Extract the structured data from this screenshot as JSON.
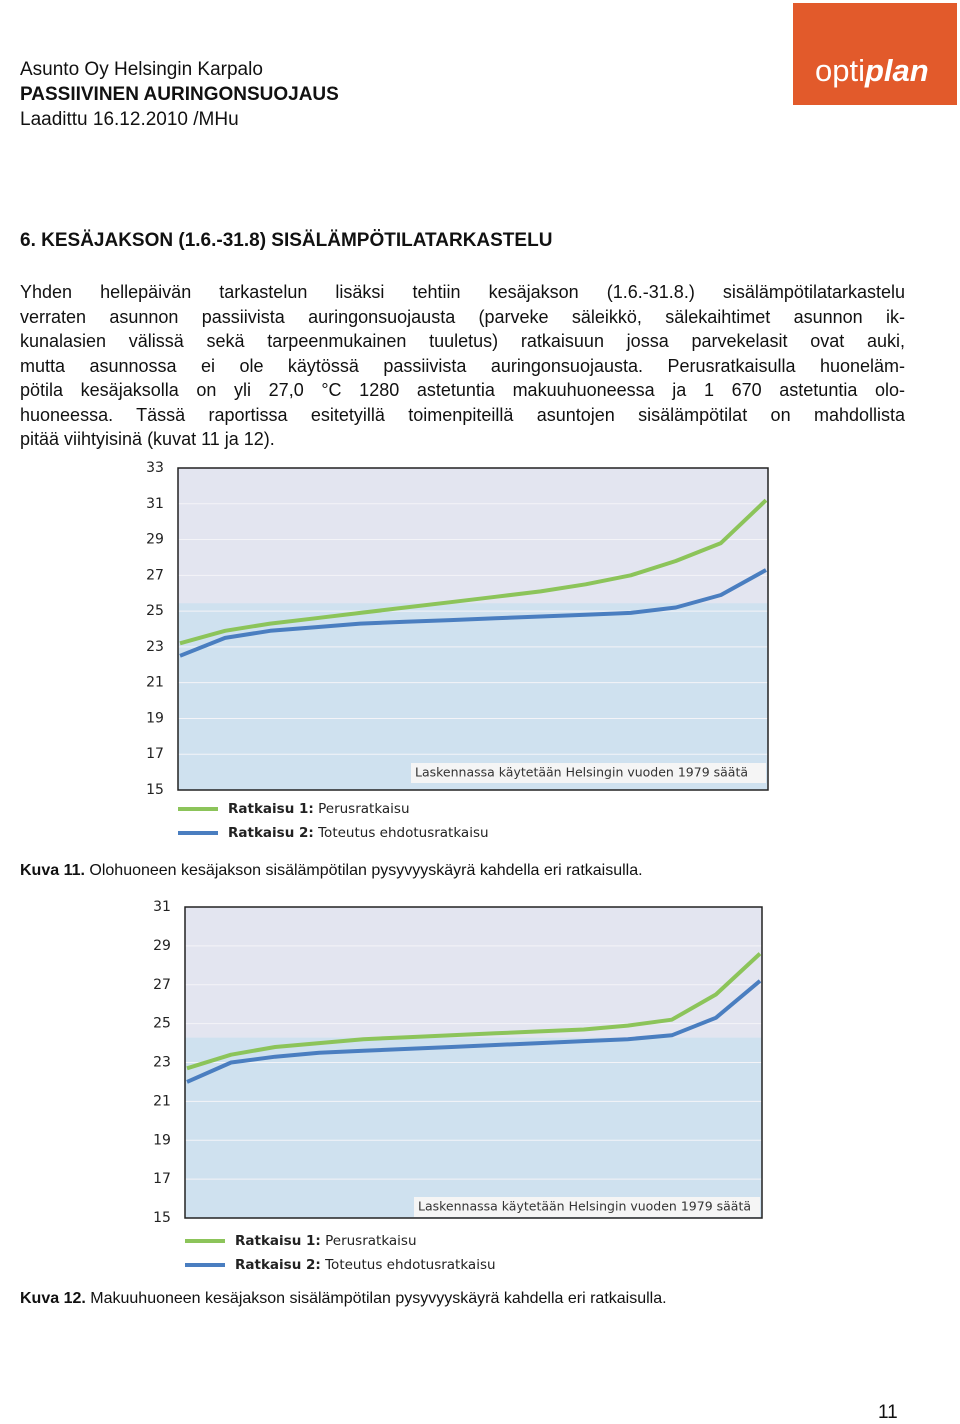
{
  "header": {
    "lines": [
      "Asunto Oy Helsingin Karpalo",
      "PASSIIVINEN AURINGONSUOJAUS",
      "Laadittu 16.12.2010 /MHu"
    ],
    "logo": [
      "opti",
      "plan"
    ]
  },
  "section": {
    "heading": "6.  KESÄJAKSON (1.6.-31.8) SISÄLÄMPÖTILATARKASTELU",
    "paragraph": [
      "Yhden hellepäivän tarkastelun lisäksi tehtiin kesäjakson (1.6.-31.8.) sisälämpötilatarkastelu",
      "verraten asunnon passiivista auringonsuojausta (parveke säleikkö, sälekaihtimet asunnon ik-",
      "kunalasien välissä sekä tarpeenmukainen tuuletus) ratkaisuun jossa parvekelasit ovat auki,",
      "mutta asunnossa ei ole käytössä passiivista auringonsuojausta. Perusratkaisulla huoneläm-",
      "pötila kesäjaksolla on yli 27,0 °C 1280 astetuntia makuuhuoneessa ja 1 670 astetuntia olo-",
      "huoneessa. Tässä raportissa esitetyillä toimenpiteillä asuntojen sisälämpötilat on mahdollista",
      "pitää viihtyisinä (kuvat 11 ja 12)."
    ]
  },
  "chart_data": [
    {
      "type": "line",
      "annotation": "Laskennassa käytetään Helsingin vuoden 1979 säätä",
      "categories": [
        null,
        null,
        null,
        null,
        null,
        null,
        null,
        null,
        null,
        null,
        null,
        null,
        null,
        null
      ],
      "series": [
        {
          "name": "Ratkaisu 1:",
          "description": "Perusratkaisu",
          "color": "#8cc45a",
          "values": [
            23.2,
            23.9,
            24.3,
            24.6,
            24.9,
            25.2,
            25.5,
            25.8,
            26.1,
            26.5,
            27.0,
            27.8,
            28.8,
            31.2
          ]
        },
        {
          "name": "Ratkaisu 2:",
          "description": "Toteutus ehdotusratkaisu",
          "color": "#4a7ec0",
          "values": [
            22.5,
            23.5,
            23.9,
            24.1,
            24.3,
            24.4,
            24.5,
            24.6,
            24.7,
            24.8,
            24.9,
            25.2,
            25.9,
            27.3
          ]
        }
      ],
      "ylim": [
        15,
        33
      ],
      "yticks": [
        15,
        17,
        19,
        21,
        23,
        25,
        27,
        29,
        31,
        33
      ],
      "grid": true,
      "caption_label": "Kuva 11.",
      "caption": "Olohuoneen kesäjakson sisälämpötilan pysyvyyskäyrä kahdella eri ratkaisulla."
    },
    {
      "type": "line",
      "annotation": "Laskennassa käytetään Helsingin vuoden 1979 säätä",
      "categories": [
        null,
        null,
        null,
        null,
        null,
        null,
        null,
        null,
        null,
        null,
        null,
        null,
        null,
        null
      ],
      "series": [
        {
          "name": "Ratkaisu 1:",
          "description": "Perusratkaisu",
          "color": "#8cc45a",
          "values": [
            22.7,
            23.4,
            23.8,
            24.0,
            24.2,
            24.3,
            24.4,
            24.5,
            24.6,
            24.7,
            24.9,
            25.2,
            26.5,
            28.6
          ]
        },
        {
          "name": "Ratkaisu 2:",
          "description": "Toteutus ehdotusratkaisu",
          "color": "#4a7ec0",
          "values": [
            22.0,
            23.0,
            23.3,
            23.5,
            23.6,
            23.7,
            23.8,
            23.9,
            24.0,
            24.1,
            24.2,
            24.4,
            25.3,
            27.2
          ]
        }
      ],
      "ylim": [
        15,
        31
      ],
      "yticks": [
        15,
        17,
        19,
        21,
        23,
        25,
        27,
        29,
        31
      ],
      "grid": true,
      "caption_label": "Kuva 12.",
      "caption": "Makuuhuoneen kesäjakson sisälämpötilan pysyvyyskäyrä kahdella eri ratkaisulla."
    }
  ],
  "page_number": "11"
}
